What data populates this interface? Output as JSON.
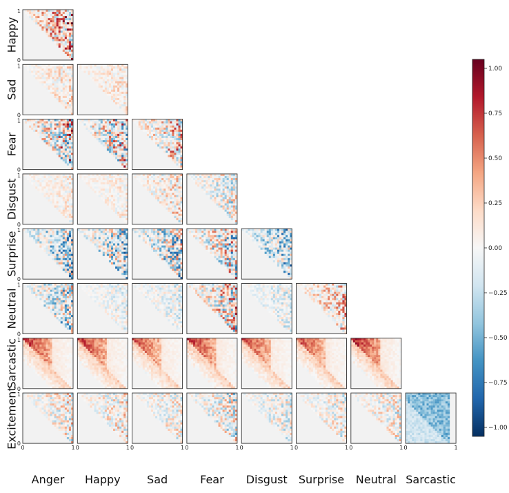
{
  "chart_data": {
    "type": "heatmap",
    "layout": "lower-triangular grid of pairwise heatmaps",
    "row_labels": [
      "Happy",
      "Sad",
      "Fear",
      "Disgust",
      "Surprise",
      "Neutral",
      "Sarcastic",
      "Excitement"
    ],
    "col_labels": [
      "Anger",
      "Happy",
      "Sad",
      "Fear",
      "Disgust",
      "Surprise",
      "Neutral",
      "Sarcastic"
    ],
    "axis_range": [
      0,
      1
    ],
    "axis_tick_labels": [
      "0",
      "1"
    ],
    "colorbar": {
      "colormap": "RdBu_r",
      "range": [
        -1.05,
        1.05
      ],
      "ticks": [
        1.0,
        0.75,
        0.5,
        0.25,
        0.0,
        -0.25,
        -0.5,
        -0.75,
        -1.0
      ],
      "tick_labels": [
        "1.00",
        "0.75",
        "0.50",
        "0.25",
        "0.00",
        "−0.25",
        "−0.50",
        "−0.75",
        "−1.00"
      ]
    },
    "pairs": [
      {
        "row": "Happy",
        "col": "Anger",
        "intensity": 0.85,
        "bias": 0.35,
        "pattern": "upper"
      },
      {
        "row": "Sad",
        "col": "Anger",
        "intensity": 0.35,
        "bias": 0.3,
        "pattern": "upper"
      },
      {
        "row": "Sad",
        "col": "Happy",
        "intensity": 0.3,
        "bias": 0.35,
        "pattern": "upper"
      },
      {
        "row": "Fear",
        "col": "Anger",
        "intensity": 0.95,
        "bias": 0.1,
        "pattern": "upper"
      },
      {
        "row": "Fear",
        "col": "Happy",
        "intensity": 0.95,
        "bias": 0.05,
        "pattern": "upper"
      },
      {
        "row": "Fear",
        "col": "Sad",
        "intensity": 0.8,
        "bias": 0.15,
        "pattern": "upper"
      },
      {
        "row": "Disgust",
        "col": "Anger",
        "intensity": 0.25,
        "bias": 0.3,
        "pattern": "upper"
      },
      {
        "row": "Disgust",
        "col": "Happy",
        "intensity": 0.25,
        "bias": 0.3,
        "pattern": "upper"
      },
      {
        "row": "Disgust",
        "col": "Sad",
        "intensity": 0.5,
        "bias": 0.15,
        "pattern": "upper"
      },
      {
        "row": "Disgust",
        "col": "Fear",
        "intensity": 0.55,
        "bias": -0.1,
        "pattern": "upper"
      },
      {
        "row": "Surprise",
        "col": "Anger",
        "intensity": 0.8,
        "bias": -0.3,
        "pattern": "upper"
      },
      {
        "row": "Surprise",
        "col": "Happy",
        "intensity": 0.8,
        "bias": -0.25,
        "pattern": "upper"
      },
      {
        "row": "Surprise",
        "col": "Sad",
        "intensity": 0.85,
        "bias": -0.2,
        "pattern": "upper"
      },
      {
        "row": "Surprise",
        "col": "Fear",
        "intensity": 0.9,
        "bias": 0.0,
        "pattern": "upper"
      },
      {
        "row": "Surprise",
        "col": "Disgust",
        "intensity": 0.7,
        "bias": -0.45,
        "pattern": "upper"
      },
      {
        "row": "Neutral",
        "col": "Anger",
        "intensity": 0.75,
        "bias": -0.2,
        "pattern": "upper"
      },
      {
        "row": "Neutral",
        "col": "Happy",
        "intensity": 0.3,
        "bias": -0.2,
        "pattern": "upper"
      },
      {
        "row": "Neutral",
        "col": "Sad",
        "intensity": 0.35,
        "bias": -0.2,
        "pattern": "upper"
      },
      {
        "row": "Neutral",
        "col": "Fear",
        "intensity": 0.85,
        "bias": 0.1,
        "pattern": "upper"
      },
      {
        "row": "Neutral",
        "col": "Disgust",
        "intensity": 0.35,
        "bias": -0.25,
        "pattern": "upper"
      },
      {
        "row": "Neutral",
        "col": "Surprise",
        "intensity": 0.6,
        "bias": 0.35,
        "pattern": "upper"
      },
      {
        "row": "Sarcastic",
        "col": "Anger",
        "intensity": 0.8,
        "bias": 0.6,
        "pattern": "band"
      },
      {
        "row": "Sarcastic",
        "col": "Happy",
        "intensity": 0.8,
        "bias": 0.6,
        "pattern": "band"
      },
      {
        "row": "Sarcastic",
        "col": "Sad",
        "intensity": 0.75,
        "bias": 0.55,
        "pattern": "band"
      },
      {
        "row": "Sarcastic",
        "col": "Fear",
        "intensity": 0.85,
        "bias": 0.6,
        "pattern": "band"
      },
      {
        "row": "Sarcastic",
        "col": "Disgust",
        "intensity": 0.75,
        "bias": 0.55,
        "pattern": "band"
      },
      {
        "row": "Sarcastic",
        "col": "Surprise",
        "intensity": 0.75,
        "bias": 0.55,
        "pattern": "band"
      },
      {
        "row": "Sarcastic",
        "col": "Neutral",
        "intensity": 0.85,
        "bias": 0.65,
        "pattern": "band"
      },
      {
        "row": "Excitement",
        "col": "Anger",
        "intensity": 0.55,
        "bias": 0.1,
        "pattern": "upper"
      },
      {
        "row": "Excitement",
        "col": "Happy",
        "intensity": 0.5,
        "bias": 0.1,
        "pattern": "upper"
      },
      {
        "row": "Excitement",
        "col": "Sad",
        "intensity": 0.45,
        "bias": 0.05,
        "pattern": "upper"
      },
      {
        "row": "Excitement",
        "col": "Fear",
        "intensity": 0.6,
        "bias": -0.05,
        "pattern": "upper"
      },
      {
        "row": "Excitement",
        "col": "Disgust",
        "intensity": 0.45,
        "bias": -0.1,
        "pattern": "upper"
      },
      {
        "row": "Excitement",
        "col": "Surprise",
        "intensity": 0.45,
        "bias": 0.0,
        "pattern": "upper"
      },
      {
        "row": "Excitement",
        "col": "Neutral",
        "intensity": 0.5,
        "bias": 0.05,
        "pattern": "upper"
      },
      {
        "row": "Excitement",
        "col": "Sarcastic",
        "intensity": 0.6,
        "bias": -0.6,
        "pattern": "block"
      }
    ]
  }
}
